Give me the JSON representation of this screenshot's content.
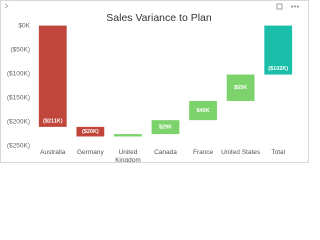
{
  "chart_data": {
    "type": "waterfall",
    "title": "Sales Variance to Plan",
    "categories": [
      "Australia",
      "Germany",
      "United Kingdom",
      "Canada",
      "France",
      "United States",
      "Total"
    ],
    "values": [
      -211,
      -20,
      5,
      29,
      40,
      55,
      -102
    ],
    "value_labels": [
      "($211K)",
      "($20K)",
      null,
      "$29K",
      "$40K",
      "$55K",
      "($102K)"
    ],
    "total": [
      false,
      false,
      false,
      false,
      false,
      false,
      true
    ],
    "increase_color": "#7dd36b",
    "decrease_color": "#c0463b",
    "total_color": "#1bbfa9",
    "ylim": [
      -255,
      20
    ],
    "yticks": [
      {
        "value": 0,
        "label": "$0K"
      },
      {
        "value": -50,
        "label": "($50K)"
      },
      {
        "value": -100,
        "label": "($100K)"
      },
      {
        "value": -150,
        "label": "($150K)"
      },
      {
        "value": -200,
        "label": "($200K)"
      },
      {
        "value": -250,
        "label": "($250K)"
      }
    ]
  }
}
